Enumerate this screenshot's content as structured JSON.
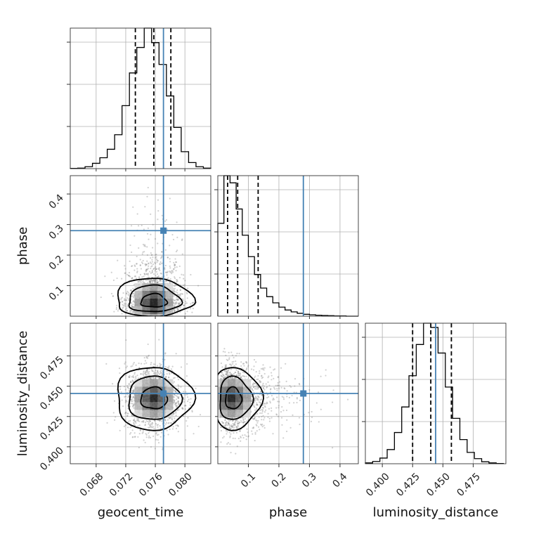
{
  "chart_data": {
    "type": "corner",
    "parameters": [
      "geocent_time",
      "phase",
      "luminosity_distance"
    ],
    "truths": {
      "geocent_time": 0.0771,
      "phase": 0.28,
      "luminosity_distance": 0.444
    },
    "quantiles": {
      "geocent_time": [
        0.0733,
        0.0758,
        0.0781
      ],
      "phase": [
        0.032,
        0.065,
        0.132
      ],
      "luminosity_distance": [
        0.425,
        0.44,
        0.457
      ]
    },
    "ranges": {
      "geocent_time": [
        0.0645,
        0.0835
      ],
      "phase": [
        0.0,
        0.46
      ],
      "luminosity_distance": [
        0.386,
        0.502
      ]
    },
    "ticks": {
      "geocent_time": [
        "0.068",
        "0.072",
        "0.076",
        "0.080"
      ],
      "phase": [
        "0.1",
        "0.2",
        "0.3",
        "0.4"
      ],
      "luminosity_distance": [
        "0.400",
        "0.425",
        "0.450",
        "0.475"
      ]
    },
    "histograms": {
      "geocent_time": {
        "edges": [
          0.0645,
          0.0655,
          0.0665,
          0.0675,
          0.0685,
          0.0695,
          0.0705,
          0.0715,
          0.0725,
          0.0735,
          0.0745,
          0.0755,
          0.0765,
          0.0775,
          0.0785,
          0.0795,
          0.0805,
          0.0815,
          0.0825,
          0.0835
        ],
        "counts": [
          1,
          2,
          8,
          22,
          45,
          80,
          140,
          260,
          395,
          500,
          580,
          520,
          430,
          300,
          170,
          70,
          25,
          8,
          2
        ]
      },
      "phase": {
        "edges": [
          0.0,
          0.02,
          0.04,
          0.06,
          0.08,
          0.1,
          0.12,
          0.14,
          0.16,
          0.18,
          0.2,
          0.22,
          0.24,
          0.26,
          0.28,
          0.3,
          0.32,
          0.34,
          0.36,
          0.38,
          0.4,
          0.42,
          0.44,
          0.46
        ],
        "counts": [
          390,
          590,
          560,
          450,
          340,
          250,
          175,
          118,
          82,
          56,
          38,
          26,
          18,
          12,
          8,
          6,
          4,
          3,
          2,
          1,
          1,
          0,
          0
        ]
      },
      "luminosity_distance": {
        "edges": [
          0.386,
          0.392,
          0.398,
          0.404,
          0.41,
          0.416,
          0.422,
          0.428,
          0.434,
          0.44,
          0.446,
          0.452,
          0.458,
          0.464,
          0.47,
          0.476,
          0.482,
          0.488,
          0.494,
          0.5
        ],
        "counts": [
          3,
          8,
          20,
          50,
          110,
          200,
          310,
          420,
          495,
          480,
          390,
          270,
          160,
          85,
          40,
          18,
          7,
          3,
          1
        ]
      }
    },
    "correlations": {
      "geocent_time|phase": {
        "center": [
          0.0758,
          0.065
        ],
        "sd": [
          0.0019,
          0.05
        ]
      },
      "geocent_time|luminosity_distance": {
        "center": [
          0.0758,
          0.44
        ],
        "sd": [
          0.0019,
          0.0135
        ]
      },
      "phase|luminosity_distance": {
        "center": [
          0.065,
          0.44
        ],
        "sd": [
          0.05,
          0.0135
        ]
      }
    },
    "grid": true,
    "colors": {
      "truth": "#4682b4",
      "contour": "#000000",
      "histogram": "#000000"
    }
  }
}
